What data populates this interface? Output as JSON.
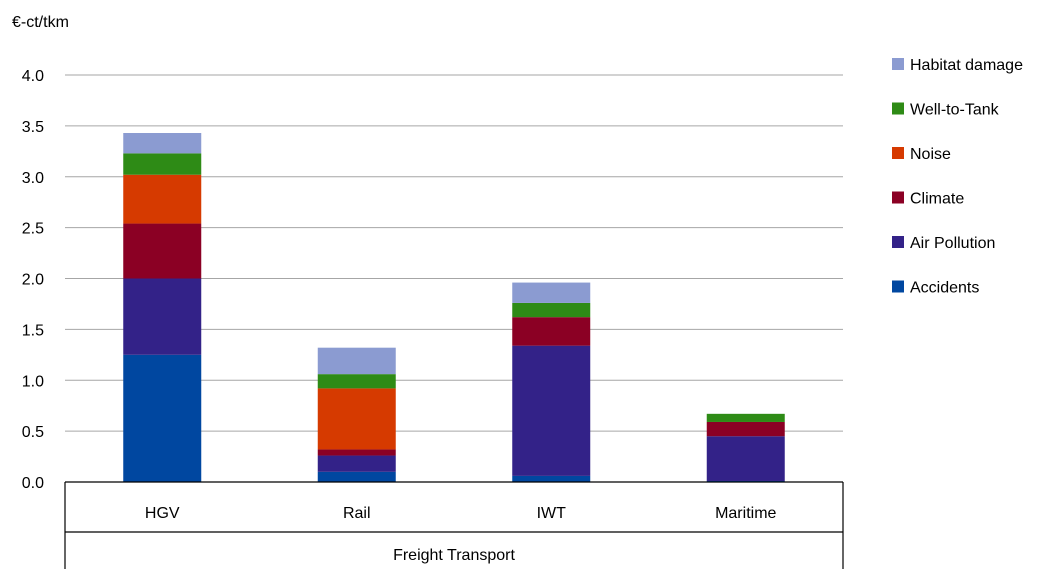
{
  "chart_data": {
    "type": "bar",
    "stacked": true,
    "ylabel": "€-ct/tkm",
    "xlabel": "Freight Transport",
    "ylim": [
      0,
      4.0
    ],
    "yticks": [
      "0.0",
      "0.5",
      "1.0",
      "1.5",
      "2.0",
      "2.5",
      "3.0",
      "3.5",
      "4.0"
    ],
    "grid": true,
    "legend_position": "right",
    "categories": [
      "HGV",
      "Rail",
      "IWT",
      "Maritime"
    ],
    "series": [
      {
        "name": "Accidents",
        "color": "#0047A0",
        "values": [
          1.25,
          0.1,
          0.06,
          0.01
        ]
      },
      {
        "name": "Air Pollution",
        "color": "#332288",
        "values": [
          0.75,
          0.16,
          1.28,
          0.44
        ]
      },
      {
        "name": "Climate",
        "color": "#8B0024",
        "values": [
          0.54,
          0.06,
          0.28,
          0.14
        ]
      },
      {
        "name": "Noise",
        "color": "#D63A00",
        "values": [
          0.48,
          0.6,
          0.0,
          0.0
        ]
      },
      {
        "name": "Well-to-Tank",
        "color": "#2E8B16",
        "values": [
          0.21,
          0.14,
          0.14,
          0.08
        ]
      },
      {
        "name": "Habitat damage",
        "color": "#8B9BD1",
        "values": [
          0.2,
          0.26,
          0.2,
          0.0
        ]
      }
    ]
  }
}
